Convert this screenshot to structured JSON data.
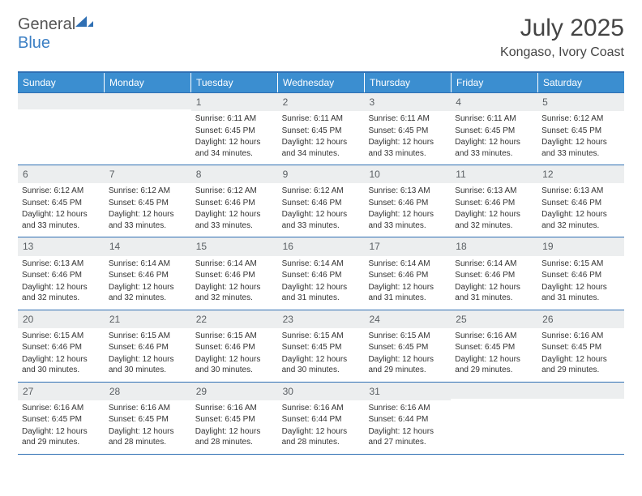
{
  "logo": {
    "text1": "General",
    "text2": "Blue"
  },
  "title": "July 2025",
  "location": "Kongaso, Ivory Coast",
  "colors": {
    "header_bg": "#3b8ed0",
    "header_border": "#2f6fb3",
    "daynum_bg": "#eceeef",
    "text": "#333333"
  },
  "daysOfWeek": [
    "Sunday",
    "Monday",
    "Tuesday",
    "Wednesday",
    "Thursday",
    "Friday",
    "Saturday"
  ],
  "weeks": [
    [
      {
        "n": "",
        "sr": "",
        "ss": "",
        "dl": ""
      },
      {
        "n": "",
        "sr": "",
        "ss": "",
        "dl": ""
      },
      {
        "n": "1",
        "sr": "Sunrise: 6:11 AM",
        "ss": "Sunset: 6:45 PM",
        "dl": "Daylight: 12 hours and 34 minutes."
      },
      {
        "n": "2",
        "sr": "Sunrise: 6:11 AM",
        "ss": "Sunset: 6:45 PM",
        "dl": "Daylight: 12 hours and 34 minutes."
      },
      {
        "n": "3",
        "sr": "Sunrise: 6:11 AM",
        "ss": "Sunset: 6:45 PM",
        "dl": "Daylight: 12 hours and 33 minutes."
      },
      {
        "n": "4",
        "sr": "Sunrise: 6:11 AM",
        "ss": "Sunset: 6:45 PM",
        "dl": "Daylight: 12 hours and 33 minutes."
      },
      {
        "n": "5",
        "sr": "Sunrise: 6:12 AM",
        "ss": "Sunset: 6:45 PM",
        "dl": "Daylight: 12 hours and 33 minutes."
      }
    ],
    [
      {
        "n": "6",
        "sr": "Sunrise: 6:12 AM",
        "ss": "Sunset: 6:45 PM",
        "dl": "Daylight: 12 hours and 33 minutes."
      },
      {
        "n": "7",
        "sr": "Sunrise: 6:12 AM",
        "ss": "Sunset: 6:45 PM",
        "dl": "Daylight: 12 hours and 33 minutes."
      },
      {
        "n": "8",
        "sr": "Sunrise: 6:12 AM",
        "ss": "Sunset: 6:46 PM",
        "dl": "Daylight: 12 hours and 33 minutes."
      },
      {
        "n": "9",
        "sr": "Sunrise: 6:12 AM",
        "ss": "Sunset: 6:46 PM",
        "dl": "Daylight: 12 hours and 33 minutes."
      },
      {
        "n": "10",
        "sr": "Sunrise: 6:13 AM",
        "ss": "Sunset: 6:46 PM",
        "dl": "Daylight: 12 hours and 33 minutes."
      },
      {
        "n": "11",
        "sr": "Sunrise: 6:13 AM",
        "ss": "Sunset: 6:46 PM",
        "dl": "Daylight: 12 hours and 32 minutes."
      },
      {
        "n": "12",
        "sr": "Sunrise: 6:13 AM",
        "ss": "Sunset: 6:46 PM",
        "dl": "Daylight: 12 hours and 32 minutes."
      }
    ],
    [
      {
        "n": "13",
        "sr": "Sunrise: 6:13 AM",
        "ss": "Sunset: 6:46 PM",
        "dl": "Daylight: 12 hours and 32 minutes."
      },
      {
        "n": "14",
        "sr": "Sunrise: 6:14 AM",
        "ss": "Sunset: 6:46 PM",
        "dl": "Daylight: 12 hours and 32 minutes."
      },
      {
        "n": "15",
        "sr": "Sunrise: 6:14 AM",
        "ss": "Sunset: 6:46 PM",
        "dl": "Daylight: 12 hours and 32 minutes."
      },
      {
        "n": "16",
        "sr": "Sunrise: 6:14 AM",
        "ss": "Sunset: 6:46 PM",
        "dl": "Daylight: 12 hours and 31 minutes."
      },
      {
        "n": "17",
        "sr": "Sunrise: 6:14 AM",
        "ss": "Sunset: 6:46 PM",
        "dl": "Daylight: 12 hours and 31 minutes."
      },
      {
        "n": "18",
        "sr": "Sunrise: 6:14 AM",
        "ss": "Sunset: 6:46 PM",
        "dl": "Daylight: 12 hours and 31 minutes."
      },
      {
        "n": "19",
        "sr": "Sunrise: 6:15 AM",
        "ss": "Sunset: 6:46 PM",
        "dl": "Daylight: 12 hours and 31 minutes."
      }
    ],
    [
      {
        "n": "20",
        "sr": "Sunrise: 6:15 AM",
        "ss": "Sunset: 6:46 PM",
        "dl": "Daylight: 12 hours and 30 minutes."
      },
      {
        "n": "21",
        "sr": "Sunrise: 6:15 AM",
        "ss": "Sunset: 6:46 PM",
        "dl": "Daylight: 12 hours and 30 minutes."
      },
      {
        "n": "22",
        "sr": "Sunrise: 6:15 AM",
        "ss": "Sunset: 6:46 PM",
        "dl": "Daylight: 12 hours and 30 minutes."
      },
      {
        "n": "23",
        "sr": "Sunrise: 6:15 AM",
        "ss": "Sunset: 6:45 PM",
        "dl": "Daylight: 12 hours and 30 minutes."
      },
      {
        "n": "24",
        "sr": "Sunrise: 6:15 AM",
        "ss": "Sunset: 6:45 PM",
        "dl": "Daylight: 12 hours and 29 minutes."
      },
      {
        "n": "25",
        "sr": "Sunrise: 6:16 AM",
        "ss": "Sunset: 6:45 PM",
        "dl": "Daylight: 12 hours and 29 minutes."
      },
      {
        "n": "26",
        "sr": "Sunrise: 6:16 AM",
        "ss": "Sunset: 6:45 PM",
        "dl": "Daylight: 12 hours and 29 minutes."
      }
    ],
    [
      {
        "n": "27",
        "sr": "Sunrise: 6:16 AM",
        "ss": "Sunset: 6:45 PM",
        "dl": "Daylight: 12 hours and 29 minutes."
      },
      {
        "n": "28",
        "sr": "Sunrise: 6:16 AM",
        "ss": "Sunset: 6:45 PM",
        "dl": "Daylight: 12 hours and 28 minutes."
      },
      {
        "n": "29",
        "sr": "Sunrise: 6:16 AM",
        "ss": "Sunset: 6:45 PM",
        "dl": "Daylight: 12 hours and 28 minutes."
      },
      {
        "n": "30",
        "sr": "Sunrise: 6:16 AM",
        "ss": "Sunset: 6:44 PM",
        "dl": "Daylight: 12 hours and 28 minutes."
      },
      {
        "n": "31",
        "sr": "Sunrise: 6:16 AM",
        "ss": "Sunset: 6:44 PM",
        "dl": "Daylight: 12 hours and 27 minutes."
      },
      {
        "n": "",
        "sr": "",
        "ss": "",
        "dl": ""
      },
      {
        "n": "",
        "sr": "",
        "ss": "",
        "dl": ""
      }
    ]
  ]
}
